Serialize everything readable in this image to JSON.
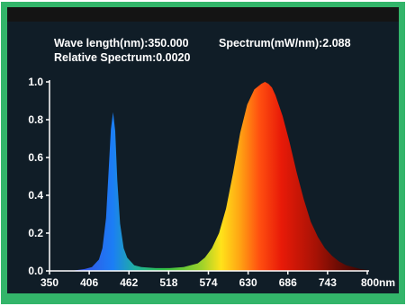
{
  "colors": {
    "frame": "#33b56a",
    "panel": "#101d27",
    "top_band": "#141414",
    "axis": "#ffffff",
    "text": "#ffffff"
  },
  "readout": {
    "wave_length": "Wave length(nm):350.000",
    "spectrum": "Spectrum(mW/nm):2.088",
    "relative": "Relative Spectrum:0.0020"
  },
  "chart_data": {
    "type": "area",
    "title": "",
    "xlabel": "",
    "ylabel": "",
    "x_unit": "nm",
    "xlim": [
      350,
      800
    ],
    "ylim": [
      0,
      1.0
    ],
    "x_ticks": [
      "350",
      "406",
      "462",
      "518",
      "574",
      "630",
      "686",
      "743",
      "800nm"
    ],
    "y_ticks": [
      "0.0",
      "0.2",
      "0.4",
      "0.6",
      "0.8",
      "1.0"
    ],
    "grid": false,
    "legend": "none",
    "series": [
      {
        "x": [
          350,
          380,
          400,
          410,
          420,
          425,
          430,
          434,
          437,
          440,
          443,
          446,
          450,
          455,
          460,
          470,
          480,
          500,
          520,
          540,
          560,
          570,
          580,
          590,
          600,
          610,
          620,
          630,
          640,
          650,
          655,
          660,
          665,
          670,
          680,
          690,
          700,
          710,
          720,
          730,
          740,
          750,
          760,
          770,
          780,
          790,
          800
        ],
        "y": [
          0.0,
          0.0,
          0.01,
          0.02,
          0.06,
          0.12,
          0.28,
          0.55,
          0.75,
          0.84,
          0.74,
          0.48,
          0.25,
          0.12,
          0.07,
          0.03,
          0.02,
          0.015,
          0.015,
          0.02,
          0.04,
          0.07,
          0.12,
          0.2,
          0.33,
          0.52,
          0.73,
          0.88,
          0.96,
          0.99,
          1.0,
          0.99,
          0.97,
          0.93,
          0.82,
          0.68,
          0.52,
          0.38,
          0.26,
          0.18,
          0.12,
          0.08,
          0.05,
          0.03,
          0.02,
          0.01,
          0.005
        ]
      }
    ]
  }
}
